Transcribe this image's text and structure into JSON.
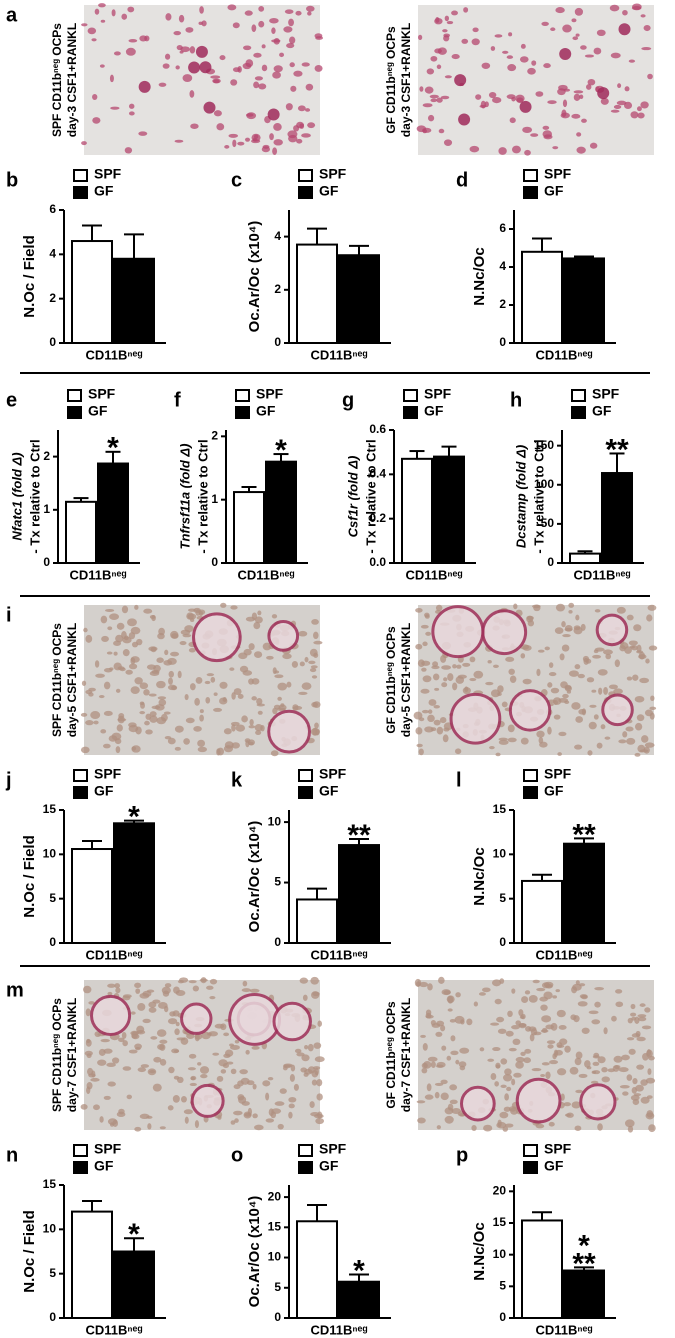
{
  "image_panels": [
    {
      "panel": "a",
      "images": [
        {
          "label": [
            "SPF CD11bⁿᵉᵍ OCPs",
            "day-3 CSF1+RANKL"
          ]
        },
        {
          "label": [
            "GF CD11bⁿᵉᵍ OCPs",
            "day-3 CSF1+RANKL"
          ]
        }
      ]
    },
    {
      "panel": "i",
      "images": [
        {
          "label": [
            "SPF CD11bⁿᵉᵍ OCPs",
            "day-5 CSF1+RANKL"
          ]
        },
        {
          "label": [
            "GF CD11bⁿᵉᵍ OCPs",
            "day-5 CSF1+RANKL"
          ]
        }
      ]
    },
    {
      "panel": "m",
      "images": [
        {
          "label": [
            "SPF CD11bⁿᵉᵍ OCPs",
            "day-7 CSF1+RANKL"
          ]
        },
        {
          "label": [
            "GF CD11bⁿᵉᵍ OCPs",
            "day-7 CSF1+RANKL"
          ]
        }
      ]
    }
  ],
  "chart_data": [
    {
      "type": "bar",
      "panel": "b",
      "ylabel": [
        "N.Oc / Field"
      ],
      "xlabel": "CD11Bⁿᵉᵍ",
      "ylim": [
        0,
        6
      ],
      "yticks": [
        0,
        2,
        4,
        6
      ],
      "series": [
        {
          "name": "SPF",
          "color": "#ffffff",
          "values": [
            4.6
          ],
          "errors": [
            0.7
          ]
        },
        {
          "name": "GF",
          "color": "#000000",
          "values": [
            3.8
          ],
          "errors": [
            1.1
          ]
        }
      ]
    },
    {
      "type": "bar",
      "panel": "c",
      "ylabel": [
        "Oc.Ar/Oc (x10⁴)"
      ],
      "xlabel": "CD11Bⁿᵉᵍ",
      "ylim": [
        0,
        5
      ],
      "yticks": [
        0,
        2,
        4
      ],
      "series": [
        {
          "name": "SPF",
          "color": "#ffffff",
          "values": [
            3.7
          ],
          "errors": [
            0.6
          ]
        },
        {
          "name": "GF",
          "color": "#000000",
          "values": [
            3.3
          ],
          "errors": [
            0.35
          ]
        }
      ]
    },
    {
      "type": "bar",
      "panel": "d",
      "ylabel": [
        "N.Nc/Oc"
      ],
      "xlabel": "CD11Bⁿᵉᵍ",
      "ylim": [
        0,
        7
      ],
      "yticks": [
        0,
        2,
        4,
        6
      ],
      "series": [
        {
          "name": "SPF",
          "color": "#ffffff",
          "values": [
            4.8
          ],
          "errors": [
            0.7
          ]
        },
        {
          "name": "GF",
          "color": "#000000",
          "values": [
            4.45
          ],
          "errors": [
            0.1
          ]
        }
      ]
    },
    {
      "type": "bar",
      "panel": "e",
      "ylabel": [
        "Nfatc1 (fold Δ)",
        "- Tx relative to Ctrl"
      ],
      "xlabel": "CD11Bⁿᵉᵍ",
      "ylim": [
        0,
        2.5
      ],
      "yticks": [
        0,
        1,
        2
      ],
      "annotation": [
        "*"
      ],
      "series": [
        {
          "name": "SPF",
          "color": "#ffffff",
          "values": [
            1.15
          ],
          "errors": [
            0.07
          ]
        },
        {
          "name": "GF",
          "color": "#000000",
          "values": [
            1.87
          ],
          "errors": [
            0.22
          ]
        }
      ]
    },
    {
      "type": "bar",
      "panel": "f",
      "ylabel": [
        "Tnfrsf11a (fold Δ)",
        "- Tx relative to Ctrl"
      ],
      "xlabel": "CD11Bⁿᵉᵍ",
      "ylim": [
        0,
        2.1
      ],
      "yticks": [
        0,
        1,
        2
      ],
      "annotation": [
        "*"
      ],
      "series": [
        {
          "name": "SPF",
          "color": "#ffffff",
          "values": [
            1.12
          ],
          "errors": [
            0.08
          ]
        },
        {
          "name": "GF",
          "color": "#000000",
          "values": [
            1.6
          ],
          "errors": [
            0.12
          ]
        }
      ]
    },
    {
      "type": "bar",
      "panel": "g",
      "ylabel": [
        "Csf1r (fold Δ)",
        "- Tx relative to Ctrl"
      ],
      "xlabel": "CD11Bⁿᵉᵍ",
      "ylim": [
        0,
        0.6
      ],
      "yticks": [
        {
          "value": 0,
          "label": "0.0"
        },
        0.2,
        0.4,
        0.6
      ],
      "series": [
        {
          "name": "SPF",
          "color": "#ffffff",
          "values": [
            0.47
          ],
          "errors": [
            0.035
          ]
        },
        {
          "name": "GF",
          "color": "#000000",
          "values": [
            0.48
          ],
          "errors": [
            0.045
          ]
        }
      ]
    },
    {
      "type": "bar",
      "panel": "h",
      "ylabel": [
        "Dcstamp (fold Δ)",
        "- Tx relative to Ctrl"
      ],
      "xlabel": "CD11Bⁿᵉᵍ",
      "ylim": [
        0,
        170
      ],
      "yticks": [
        0,
        50,
        100,
        150
      ],
      "annotation": [
        "**"
      ],
      "series": [
        {
          "name": "SPF",
          "color": "#ffffff",
          "values": [
            12
          ],
          "errors": [
            3
          ]
        },
        {
          "name": "GF",
          "color": "#000000",
          "values": [
            115
          ],
          "errors": [
            25
          ]
        }
      ]
    },
    {
      "type": "bar",
      "panel": "j",
      "ylabel": [
        "N.Oc / Field"
      ],
      "xlabel": "CD11Bⁿᵉᵍ",
      "ylim": [
        0,
        15
      ],
      "yticks": [
        0,
        5,
        10,
        15
      ],
      "annotation": [
        "*"
      ],
      "series": [
        {
          "name": "SPF",
          "color": "#ffffff",
          "values": [
            10.6
          ],
          "errors": [
            0.9
          ]
        },
        {
          "name": "GF",
          "color": "#000000",
          "values": [
            13.5
          ],
          "errors": [
            0.3
          ]
        }
      ]
    },
    {
      "type": "bar",
      "panel": "k",
      "ylabel": [
        "Oc.Ar/Oc (x10⁴)"
      ],
      "xlabel": "CD11Bⁿᵉᵍ",
      "ylim": [
        0,
        11
      ],
      "yticks": [
        0,
        5,
        10
      ],
      "annotation": [
        "**"
      ],
      "series": [
        {
          "name": "SPF",
          "color": "#ffffff",
          "values": [
            3.6
          ],
          "errors": [
            0.9
          ]
        },
        {
          "name": "GF",
          "color": "#000000",
          "values": [
            8.1
          ],
          "errors": [
            0.5
          ]
        }
      ]
    },
    {
      "type": "bar",
      "panel": "l",
      "ylabel": [
        "N.Nc/Oc"
      ],
      "xlabel": "CD11Bⁿᵉᵍ",
      "ylim": [
        0,
        15
      ],
      "yticks": [
        0,
        5,
        10,
        15
      ],
      "annotation": [
        "**"
      ],
      "series": [
        {
          "name": "SPF",
          "color": "#ffffff",
          "values": [
            7.0
          ],
          "errors": [
            0.7
          ]
        },
        {
          "name": "GF",
          "color": "#000000",
          "values": [
            11.2
          ],
          "errors": [
            0.6
          ]
        }
      ]
    },
    {
      "type": "bar",
      "panel": "n",
      "ylabel": [
        "N.Oc / Field"
      ],
      "xlabel": "CD11Bⁿᵉᵍ",
      "ylim": [
        0,
        15
      ],
      "yticks": [
        0,
        5,
        10,
        15
      ],
      "annotation": [
        "*"
      ],
      "series": [
        {
          "name": "SPF",
          "color": "#ffffff",
          "values": [
            12
          ],
          "errors": [
            1.2
          ]
        },
        {
          "name": "GF",
          "color": "#000000",
          "values": [
            7.5
          ],
          "errors": [
            1.5
          ]
        }
      ]
    },
    {
      "type": "bar",
      "panel": "o",
      "ylabel": [
        "Oc.Ar/Oc (x10⁴)"
      ],
      "xlabel": "CD11Bⁿᵉᵍ",
      "ylim": [
        0,
        22
      ],
      "yticks": [
        0,
        5,
        10,
        15,
        20
      ],
      "annotation": [
        "*"
      ],
      "series": [
        {
          "name": "SPF",
          "color": "#ffffff",
          "values": [
            16
          ],
          "errors": [
            2.7
          ]
        },
        {
          "name": "GF",
          "color": "#000000",
          "values": [
            6
          ],
          "errors": [
            1.2
          ]
        }
      ]
    },
    {
      "type": "bar",
      "panel": "p",
      "ylabel": [
        "N.Nc/Oc"
      ],
      "xlabel": "CD11Bⁿᵉᵍ",
      "ylim": [
        0,
        21
      ],
      "yticks": [
        0,
        5,
        10,
        15,
        20
      ],
      "annotation": [
        "*",
        "**"
      ],
      "series": [
        {
          "name": "SPF",
          "color": "#ffffff",
          "values": [
            15.4
          ],
          "errors": [
            1.3
          ]
        },
        {
          "name": "GF",
          "color": "#000000",
          "values": [
            7.5
          ],
          "errors": [
            0.5
          ]
        }
      ]
    }
  ]
}
